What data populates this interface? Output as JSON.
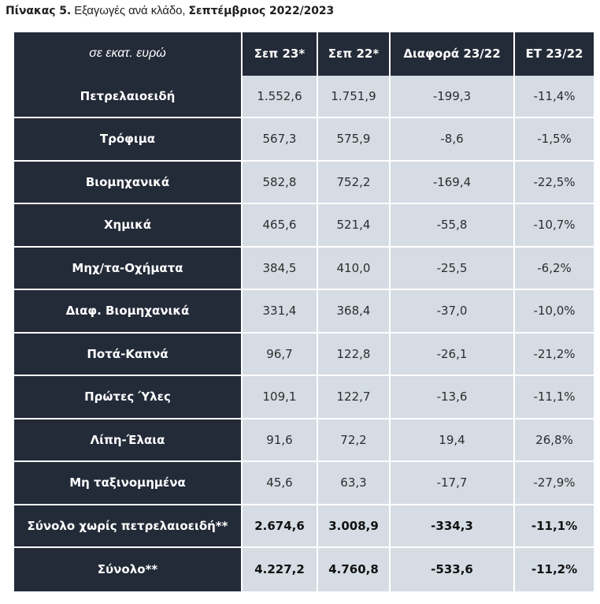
{
  "caption": {
    "prefix": "Πίνακας 5.",
    "middle": " Εξαγωγές ανά κλάδο, ",
    "suffix": "Σεπτέμβριος 2022/2023"
  },
  "table": {
    "headers": [
      "σε εκατ. ευρώ",
      "Σεπ 23*",
      "Σεπ 22*",
      "Διαφορά 23/22",
      "ΕΤ 23/22"
    ],
    "rows": [
      {
        "label": "Πετρελαιοειδή",
        "values": [
          "1.552,6",
          "1.751,9",
          "-199,3",
          "-11,4%"
        ],
        "total": false
      },
      {
        "label": "Τρόφιμα",
        "values": [
          "567,3",
          "575,9",
          "-8,6",
          "-1,5%"
        ],
        "total": false
      },
      {
        "label": "Βιομηχανικά",
        "values": [
          "582,8",
          "752,2",
          "-169,4",
          "-22,5%"
        ],
        "total": false
      },
      {
        "label": "Χημικά",
        "values": [
          "465,6",
          "521,4",
          "-55,8",
          "-10,7%"
        ],
        "total": false
      },
      {
        "label": "Μηχ/τα-Οχήματα",
        "values": [
          "384,5",
          "410,0",
          "-25,5",
          "-6,2%"
        ],
        "total": false
      },
      {
        "label": "Διαφ. Βιομηχανικά",
        "values": [
          "331,4",
          "368,4",
          "-37,0",
          "-10,0%"
        ],
        "total": false
      },
      {
        "label": "Ποτά-Καπνά",
        "values": [
          "96,7",
          "122,8",
          "-26,1",
          "-21,2%"
        ],
        "total": false
      },
      {
        "label": "Πρώτες Ύλες",
        "values": [
          "109,1",
          "122,7",
          "-13,6",
          "-11,1%"
        ],
        "total": false
      },
      {
        "label": "Λίπη-Έλαια",
        "values": [
          "91,6",
          "72,2",
          "19,4",
          "26,8%"
        ],
        "total": false
      },
      {
        "label": "Μη ταξινομημένα",
        "values": [
          "45,6",
          "63,3",
          "-17,7",
          "-27,9%"
        ],
        "total": false
      },
      {
        "label": "Σύνολο χωρίς πετρελαιοειδή**",
        "values": [
          "2.674,6",
          "3.008,9",
          "-334,3",
          "-11,1%"
        ],
        "total": true
      },
      {
        "label": "Σύνολο**",
        "values": [
          "4.227,2",
          "4.760,8",
          "-533,6",
          "-11,2%"
        ],
        "total": true
      }
    ]
  },
  "colors": {
    "header_bg": "#232a38",
    "cell_bg": "#d5dce4"
  }
}
